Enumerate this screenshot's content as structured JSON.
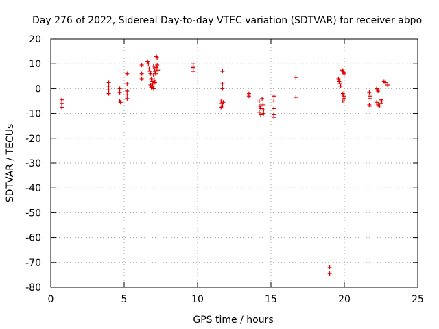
{
  "chart_data": {
    "type": "scatter",
    "title": "Day 276 of 2022, Sidereal Day-to-day VTEC variation (SDTVAR) for receiver abpo",
    "xlabel": "GPS time / hours",
    "ylabel": "SDTVAR / TECUs",
    "xlim": [
      0,
      25
    ],
    "ylim": [
      -80,
      20
    ],
    "xticks": [
      0,
      5,
      10,
      15,
      20,
      25
    ],
    "yticks": [
      20,
      10,
      0,
      -10,
      -20,
      -30,
      -40,
      -50,
      -60,
      -70,
      -80
    ],
    "xtick_labels": [
      "0",
      "5",
      "10",
      "15",
      "20",
      "25"
    ],
    "ytick_labels": [
      "20",
      "10",
      "0",
      "-10",
      "-20",
      "-30",
      "-40",
      "-50",
      "-60",
      "-70",
      "-80"
    ],
    "grid": true,
    "marker": "plus",
    "marker_color": "#e00000",
    "series": [
      {
        "name": "SDTVAR",
        "points": [
          [
            0.75,
            -4.5
          ],
          [
            0.75,
            -6
          ],
          [
            0.75,
            -7.5
          ],
          [
            3.95,
            2.5
          ],
          [
            3.95,
            1
          ],
          [
            3.95,
            -0.5
          ],
          [
            3.95,
            -2
          ],
          [
            4.7,
            0
          ],
          [
            4.7,
            -1.5
          ],
          [
            4.7,
            -5
          ],
          [
            4.75,
            -5.5
          ],
          [
            5.2,
            6
          ],
          [
            5.2,
            2
          ],
          [
            5.2,
            -1
          ],
          [
            5.2,
            -2.5
          ],
          [
            5.2,
            -4
          ],
          [
            6.2,
            9.5
          ],
          [
            6.2,
            6
          ],
          [
            6.2,
            4
          ],
          [
            6.6,
            11
          ],
          [
            6.65,
            10
          ],
          [
            6.7,
            8
          ],
          [
            6.75,
            7
          ],
          [
            6.8,
            6
          ],
          [
            6.85,
            4
          ],
          [
            6.9,
            3
          ],
          [
            6.95,
            2
          ],
          [
            6.8,
            1.5
          ],
          [
            6.85,
            0.5
          ],
          [
            7.0,
            9
          ],
          [
            7.05,
            8
          ],
          [
            7.1,
            7
          ],
          [
            7.15,
            6
          ],
          [
            7.2,
            8.5
          ],
          [
            7.25,
            9.5
          ],
          [
            7.3,
            7.5
          ],
          [
            7.0,
            5.5
          ],
          [
            7.05,
            3.5
          ],
          [
            7.1,
            2.5
          ],
          [
            6.95,
            1
          ],
          [
            7.0,
            0
          ],
          [
            7.2,
            13
          ],
          [
            7.25,
            12.5
          ],
          [
            9.7,
            10
          ],
          [
            9.7,
            9
          ],
          [
            9.7,
            8.5
          ],
          [
            9.7,
            7
          ],
          [
            11.7,
            7
          ],
          [
            11.7,
            2
          ],
          [
            11.7,
            0
          ],
          [
            11.6,
            -5
          ],
          [
            11.65,
            -6
          ],
          [
            11.7,
            -7
          ],
          [
            11.6,
            -7.5
          ],
          [
            11.75,
            -5.5
          ],
          [
            13.5,
            -2
          ],
          [
            13.5,
            -3
          ],
          [
            14.2,
            -5
          ],
          [
            14.25,
            -7
          ],
          [
            14.3,
            -8
          ],
          [
            14.2,
            -9.5
          ],
          [
            14.3,
            -10.5
          ],
          [
            14.4,
            -4
          ],
          [
            14.45,
            -6.5
          ],
          [
            14.5,
            -8.5
          ],
          [
            14.5,
            -10
          ],
          [
            15.2,
            -3
          ],
          [
            15.2,
            -5
          ],
          [
            15.2,
            -8
          ],
          [
            15.2,
            -10.5
          ],
          [
            15.2,
            -11.5
          ],
          [
            16.7,
            4.5
          ],
          [
            16.7,
            -3.5
          ],
          [
            19.0,
            -72
          ],
          [
            19.0,
            -74.5
          ],
          [
            19.6,
            4
          ],
          [
            19.65,
            3
          ],
          [
            19.7,
            2
          ],
          [
            19.75,
            1
          ],
          [
            19.85,
            7.5
          ],
          [
            19.9,
            7
          ],
          [
            19.95,
            6.5
          ],
          [
            20.0,
            6
          ],
          [
            19.9,
            -2
          ],
          [
            19.95,
            -3
          ],
          [
            20.0,
            -4
          ],
          [
            19.9,
            -5
          ],
          [
            21.7,
            -1.5
          ],
          [
            21.75,
            -3
          ],
          [
            21.75,
            -4
          ],
          [
            21.7,
            -6.5
          ],
          [
            21.75,
            -7
          ],
          [
            22.2,
            0
          ],
          [
            22.25,
            -0.5
          ],
          [
            22.3,
            -1
          ],
          [
            22.2,
            -5.5
          ],
          [
            22.3,
            -6.5
          ],
          [
            22.4,
            -7
          ],
          [
            22.5,
            -4.5
          ],
          [
            22.55,
            -5
          ],
          [
            22.5,
            -6
          ],
          [
            22.7,
            3
          ],
          [
            22.8,
            2.5
          ],
          [
            22.95,
            1.5
          ]
        ]
      }
    ]
  }
}
